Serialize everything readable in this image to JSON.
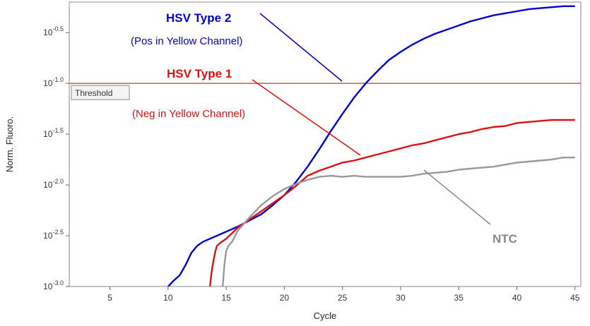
{
  "chart_data": {
    "type": "line",
    "xlabel": "Cycle",
    "ylabel": "Norm. Fluoro.",
    "xlim": [
      1.5,
      45.5
    ],
    "ylim": [
      -3.0,
      -0.2
    ],
    "y_scale": "log10",
    "x_ticks": [
      5,
      10,
      15,
      20,
      25,
      30,
      35,
      40,
      45
    ],
    "y_ticks": [
      {
        "value": -3.0,
        "base": "10",
        "exp": "-3.0"
      },
      {
        "value": -2.5,
        "base": "10",
        "exp": "-2.5"
      },
      {
        "value": -2.0,
        "base": "10",
        "exp": "-2.0"
      },
      {
        "value": -1.5,
        "base": "10",
        "exp": "-1.5"
      },
      {
        "value": -1.0,
        "base": "10",
        "exp": "-1.0"
      },
      {
        "value": -0.5,
        "base": "10",
        "exp": "-0.5"
      }
    ],
    "threshold": {
      "label": "Threshold",
      "value": -1.0,
      "color": "#cc3333"
    },
    "series": [
      {
        "color": "#0000cc",
        "x": [
          10.0,
          10.5,
          11.0,
          11.5,
          12.0,
          12.5,
          13.0,
          14.0,
          15.0,
          16.0,
          17.0,
          18.0,
          19.0,
          20.0,
          21.0,
          22.0,
          23.0,
          24.0,
          25.0,
          26.0,
          27.0,
          28.0,
          29.0,
          30.0,
          31.0,
          32.0,
          33.0,
          34.0,
          35.0,
          36.0,
          37.0,
          38.0,
          39.0,
          40.0,
          41.0,
          42.0,
          43.0,
          44.0,
          45.0
        ],
        "y": [
          -3.0,
          -2.94,
          -2.89,
          -2.79,
          -2.67,
          -2.6,
          -2.56,
          -2.51,
          -2.46,
          -2.41,
          -2.35,
          -2.29,
          -2.2,
          -2.1,
          -1.97,
          -1.82,
          -1.65,
          -1.47,
          -1.3,
          -1.14,
          -1.0,
          -0.88,
          -0.77,
          -0.69,
          -0.62,
          -0.56,
          -0.51,
          -0.47,
          -0.43,
          -0.39,
          -0.36,
          -0.33,
          -0.31,
          -0.29,
          -0.27,
          -0.26,
          -0.25,
          -0.24,
          -0.24
        ]
      },
      {
        "color": "#dd1111",
        "x": [
          13.6,
          13.75,
          13.9,
          14.05,
          14.2,
          14.5,
          15.0,
          16.0,
          17.0,
          18.0,
          19.0,
          20.0,
          21.0,
          22.0,
          23.0,
          24.0,
          25.0,
          26.0,
          27.0,
          28.0,
          29.0,
          30.0,
          31.0,
          32.0,
          33.0,
          34.0,
          35.0,
          36.0,
          37.0,
          38.0,
          39.0,
          40.0,
          41.0,
          42.0,
          43.0,
          44.0,
          45.0
        ],
        "y": [
          -3.0,
          -2.85,
          -2.75,
          -2.66,
          -2.6,
          -2.57,
          -2.53,
          -2.42,
          -2.34,
          -2.26,
          -2.18,
          -2.1,
          -2.01,
          -1.91,
          -1.86,
          -1.82,
          -1.78,
          -1.76,
          -1.73,
          -1.7,
          -1.67,
          -1.64,
          -1.61,
          -1.59,
          -1.56,
          -1.53,
          -1.5,
          -1.48,
          -1.45,
          -1.43,
          -1.42,
          -1.39,
          -1.38,
          -1.37,
          -1.36,
          -1.36,
          -1.36
        ]
      },
      {
        "color": "#999999",
        "x": [
          14.7,
          14.85,
          15.0,
          15.2,
          15.5,
          16.0,
          17.0,
          18.0,
          19.0,
          20.0,
          21.0,
          22.0,
          23.0,
          24.0,
          25.0,
          26.0,
          27.0,
          28.0,
          29.0,
          30.0,
          31.0,
          32.0,
          33.0,
          34.0,
          35.0,
          36.0,
          37.0,
          38.0,
          39.0,
          40.0,
          41.0,
          42.0,
          43.0,
          44.0,
          45.0
        ],
        "y": [
          -3.0,
          -2.78,
          -2.65,
          -2.6,
          -2.56,
          -2.45,
          -2.32,
          -2.2,
          -2.11,
          -2.04,
          -1.99,
          -1.95,
          -1.92,
          -1.91,
          -1.92,
          -1.91,
          -1.92,
          -1.92,
          -1.92,
          -1.92,
          -1.91,
          -1.89,
          -1.88,
          -1.87,
          -1.85,
          -1.84,
          -1.83,
          -1.82,
          -1.8,
          -1.78,
          -1.77,
          -1.76,
          -1.75,
          -1.73,
          -1.73
        ]
      }
    ],
    "annotations": [
      {
        "title": "HSV Type 2",
        "subtitle": "(Pos in Yellow Channel)",
        "color": "#0000cc"
      },
      {
        "title": "HSV Type 1",
        "subtitle": "(Neg in Yellow Channel)",
        "color": "#dd1111"
      },
      {
        "title": "NTC",
        "subtitle": "",
        "color": "#888888"
      }
    ]
  }
}
